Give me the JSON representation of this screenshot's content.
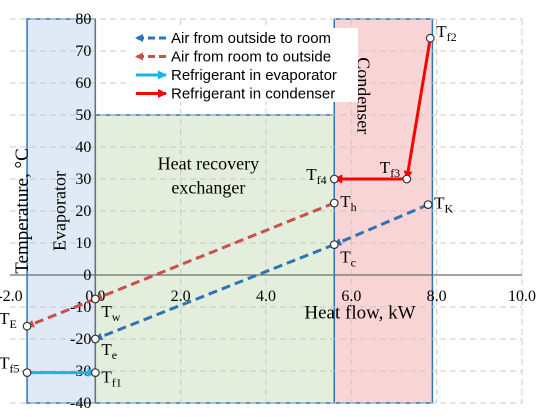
{
  "chart_data": {
    "type": "line",
    "xlabel": "Heat flow, kW",
    "ylabel": "Temperature, °C",
    "xlim": [
      -2.0,
      10.0
    ],
    "ylim": [
      -40,
      80
    ],
    "x_ticks": [
      "-2.0",
      "0.0",
      "2.0",
      "4.0",
      "6.0",
      "8.0",
      "10.0"
    ],
    "y_ticks": [
      "-40",
      "-30",
      "-20",
      "-10",
      "0",
      "10",
      "20",
      "30",
      "40",
      "50",
      "60",
      "70",
      "80"
    ],
    "grid": true,
    "legend_position": "top-center",
    "regions": [
      {
        "name": "Evaporator",
        "x": [
          -1.6,
          0.0
        ],
        "y": [
          -40,
          80
        ],
        "color": "#dfeaf6"
      },
      {
        "name": "Heat recovery exchanger",
        "label_line1": "Heat recovery",
        "label_line2": "exchanger",
        "x": [
          0.0,
          5.6
        ],
        "y": [
          -40,
          50
        ],
        "color": "#e3efdc"
      },
      {
        "name": "Condenser",
        "x": [
          5.6,
          7.9
        ],
        "y": [
          -40,
          80
        ],
        "color": "#f9d4d5"
      }
    ],
    "series": [
      {
        "name": "Air from outside to room",
        "color": "#2e74b5",
        "dash": true,
        "x": [
          0.0,
          5.6,
          7.8
        ],
        "y": [
          -20,
          9.5,
          22
        ]
      },
      {
        "name": "Air from room  to outside",
        "color": "#c9504b",
        "dash": true,
        "x": [
          -1.6,
          0.0,
          5.6
        ],
        "y": [
          -16,
          -7.5,
          22.5
        ]
      },
      {
        "name": "Refrigerant in evaporator",
        "color": "#19b4e8",
        "dash": false,
        "x": [
          -1.6,
          0.0
        ],
        "y": [
          -30.5,
          -30.5
        ]
      },
      {
        "name": "Refrigerant in condenser",
        "color": "#ff0000",
        "dash": false,
        "x": [
          7.85,
          7.3,
          5.6
        ],
        "y": [
          74,
          30,
          30
        ]
      }
    ],
    "points": [
      {
        "label": "T",
        "sub": "f2",
        "x": 7.85,
        "y": 74
      },
      {
        "label": "T",
        "sub": "f3",
        "x": 7.3,
        "y": 30
      },
      {
        "label": "T",
        "sub": "f4",
        "x": 5.6,
        "y": 30
      },
      {
        "label": "T",
        "sub": "h",
        "x": 5.6,
        "y": 22.5
      },
      {
        "label": "T",
        "sub": "K",
        "x": 7.8,
        "y": 22
      },
      {
        "label": "T",
        "sub": "c",
        "x": 5.6,
        "y": 9.5
      },
      {
        "label": "T",
        "sub": "w",
        "x": 0.0,
        "y": -7.5
      },
      {
        "label": "T",
        "sub": "E",
        "x": -1.6,
        "y": -16
      },
      {
        "label": "T",
        "sub": "e",
        "x": 0.0,
        "y": -20
      },
      {
        "label": "T",
        "sub": "f5",
        "x": -1.6,
        "y": -30.5
      },
      {
        "label": "T",
        "sub": "f1",
        "x": 0.0,
        "y": -30.5
      }
    ]
  }
}
